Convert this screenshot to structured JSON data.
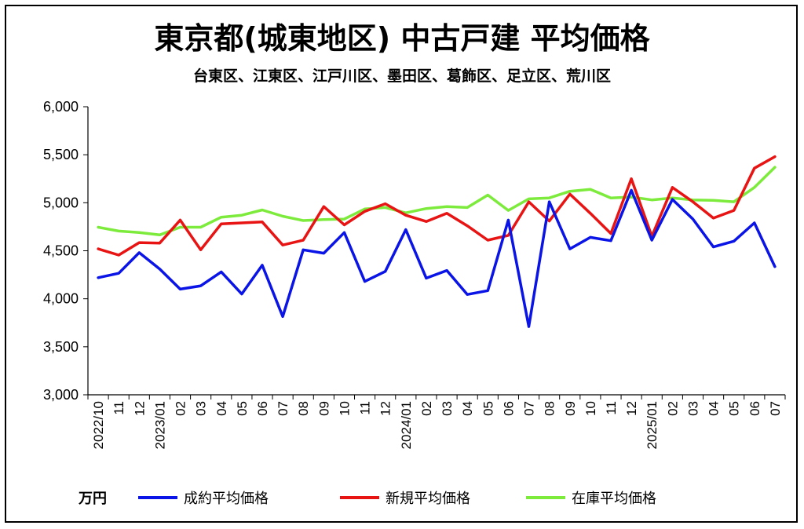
{
  "chart_data": {
    "type": "line",
    "title": "東京都(城東地区) 中古戸建 平均価格",
    "subtitle": "台東区、江東区、江戸川区、墨田区、葛飾区、足立区、荒川区",
    "unit_label": "万円",
    "ylim": [
      3000,
      6000
    ],
    "yticks": [
      "3,000",
      "3,500",
      "4,000",
      "4,500",
      "5,000",
      "5,500",
      "6,000"
    ],
    "ytick_values": [
      3000,
      3500,
      4000,
      4500,
      5000,
      5500,
      6000
    ],
    "grid": false,
    "legend_position": "bottom",
    "x": [
      "2022/10",
      "11",
      "12",
      "2023/01",
      "02",
      "03",
      "04",
      "05",
      "06",
      "07",
      "08",
      "09",
      "10",
      "11",
      "12",
      "2024/01",
      "02",
      "03",
      "04",
      "05",
      "06",
      "07",
      "08",
      "09",
      "10",
      "11",
      "12",
      "2025/01",
      "02",
      "03",
      "04",
      "05",
      "06",
      "07"
    ],
    "series": [
      {
        "name": "成約平均価格",
        "color": "#0a14e6",
        "values": [
          4220,
          4265,
          4480,
          4310,
          4100,
          4135,
          4280,
          4050,
          4350,
          3815,
          4510,
          4475,
          4690,
          4180,
          4285,
          4720,
          4215,
          4295,
          4045,
          4085,
          4820,
          3710,
          5010,
          4520,
          4640,
          4605,
          5130,
          4610,
          5035,
          4830,
          4540,
          4600,
          4790,
          4335
        ]
      },
      {
        "name": "新規平均価格",
        "color": "#e81414",
        "values": [
          4520,
          4455,
          4585,
          4580,
          4820,
          4510,
          4780,
          4790,
          4800,
          4560,
          4610,
          4960,
          4770,
          4910,
          4990,
          4870,
          4805,
          4890,
          4760,
          4610,
          4660,
          5010,
          4810,
          5090,
          4890,
          4680,
          5250,
          4650,
          5160,
          5010,
          4840,
          4920,
          5360,
          5480
        ]
      },
      {
        "name": "在庫平均価格",
        "color": "#7deb3c",
        "values": [
          4745,
          4705,
          4690,
          4665,
          4745,
          4745,
          4850,
          4870,
          4925,
          4860,
          4815,
          4825,
          4830,
          4935,
          4950,
          4895,
          4940,
          4960,
          4950,
          5080,
          4920,
          5040,
          5050,
          5120,
          5140,
          5050,
          5060,
          5030,
          5050,
          5030,
          5025,
          5010,
          5160,
          5370
        ]
      }
    ]
  }
}
